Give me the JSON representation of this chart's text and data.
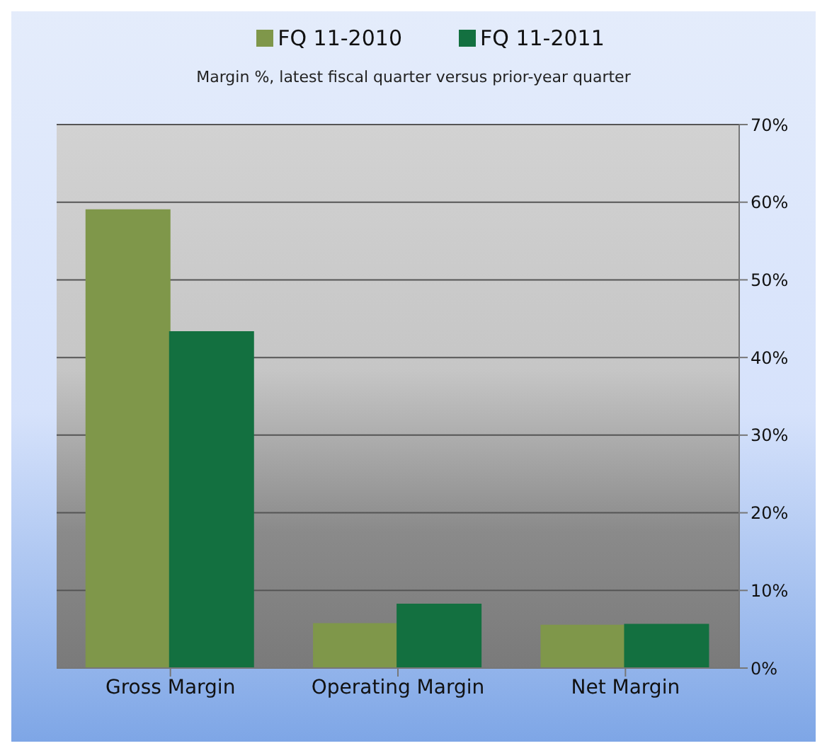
{
  "chart_data": {
    "type": "bar",
    "subtitle": "Margin %,  latest fiscal quarter versus prior-year quarter",
    "categories": [
      "Gross Margin",
      "Operating Margin",
      "Net Margin"
    ],
    "series": [
      {
        "name": "FQ 11-2010",
        "color": "#7f974a",
        "values": [
          59.0,
          5.7,
          5.5
        ]
      },
      {
        "name": "FQ 11-2011",
        "color": "#137040",
        "values": [
          43.3,
          8.2,
          5.6
        ]
      }
    ],
    "ylim": [
      0,
      70
    ],
    "yticks": [
      {
        "value": 0,
        "label": "0%"
      },
      {
        "value": 10,
        "label": "10%"
      },
      {
        "value": 20,
        "label": "20%"
      },
      {
        "value": 30,
        "label": "30%"
      },
      {
        "value": 40,
        "label": "40%"
      },
      {
        "value": 50,
        "label": "50%"
      },
      {
        "value": 60,
        "label": "60%"
      },
      {
        "value": 70,
        "label": "70%"
      }
    ],
    "grid": "y",
    "legend": "top"
  }
}
